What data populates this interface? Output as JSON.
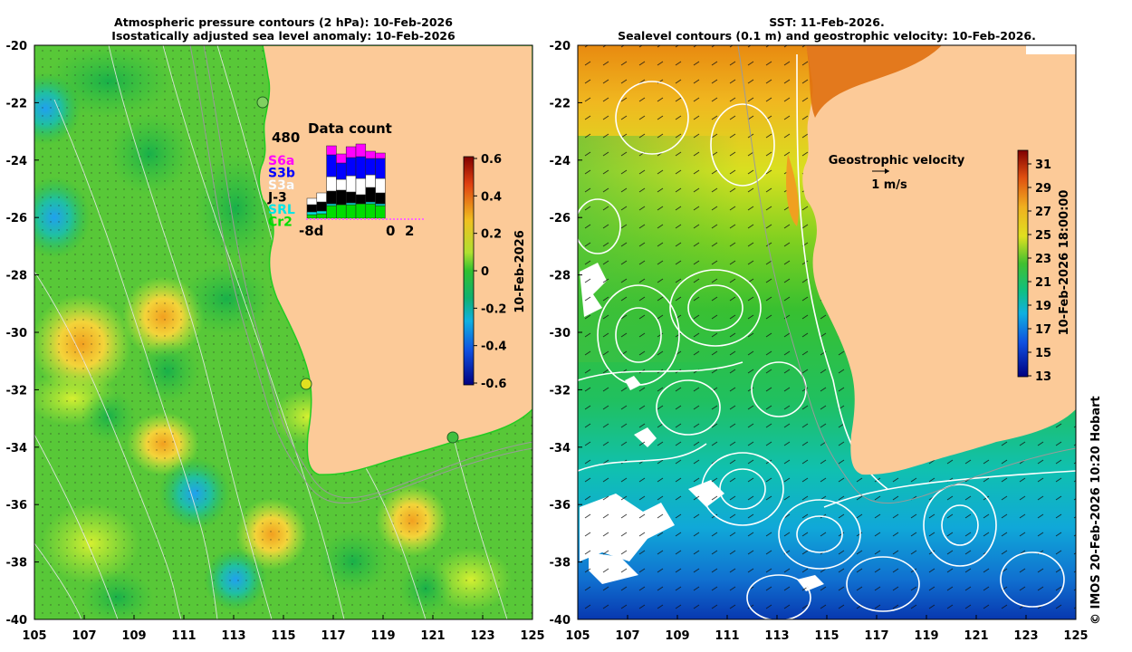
{
  "left_panel": {
    "title_line1": "Atmospheric pressure contours (2 hPa): 10-Feb-2026",
    "title_line2": "Isostatically adjusted sea level anomaly: 10-Feb-2026",
    "lat_ticks": [
      "-20",
      "-22",
      "-24",
      "-26",
      "-28",
      "-30",
      "-32",
      "-34",
      "-36",
      "-38",
      "-40"
    ],
    "lon_ticks": [
      "105",
      "107",
      "109",
      "111",
      "113",
      "115",
      "117",
      "119",
      "121",
      "123",
      "125"
    ],
    "colorbar": {
      "ticks": [
        "0.6",
        "0.4",
        "0.2",
        "0",
        "-0.2",
        "-0.4",
        "-0.6"
      ],
      "label": "10-Feb-2026"
    },
    "inset": {
      "title": "Data count",
      "max_count": "480",
      "x_left": "-8d",
      "x_right_0": "0",
      "x_right_2": "2",
      "missions": [
        {
          "name": "S6a",
          "color": "#ff00ff"
        },
        {
          "name": "S3b",
          "color": "#0000ff"
        },
        {
          "name": "S3a",
          "color": "#ffffff"
        },
        {
          "name": "J-3",
          "color": "#000000"
        },
        {
          "name": "SRL",
          "color": "#00e5e5"
        },
        {
          "name": "Cr2",
          "color": "#00dd00"
        }
      ]
    }
  },
  "right_panel": {
    "title_line1": "SST: 11-Feb-2026.",
    "title_line2": "Sealevel contours (0.1 m) and geostrophic velocity: 10-Feb-2026.",
    "lat_ticks": [
      "-20",
      "-22",
      "-24",
      "-26",
      "-28",
      "-30",
      "-32",
      "-34",
      "-36",
      "-38",
      "-40"
    ],
    "lon_ticks": [
      "105",
      "107",
      "109",
      "111",
      "113",
      "115",
      "117",
      "119",
      "121",
      "123",
      "125"
    ],
    "velocity_legend_title": "Geostrophic velocity",
    "velocity_legend_scale": "1 m/s",
    "colorbar": {
      "ticks": [
        "31",
        "29",
        "27",
        "25",
        "23",
        "21",
        "19",
        "17",
        "15",
        "13"
      ],
      "label": "10-Feb-2026 18:00:00"
    }
  },
  "credit": "© IMOS 20-Feb-2026 10:20 Hobart",
  "colors": {
    "land": "#fcca98",
    "coast_shelf": "#22cc22",
    "sla_positive": "#f0c020",
    "sla_negative": "#2080ff",
    "sst_warm": "#e07000",
    "sst_cool": "#0040c0"
  }
}
